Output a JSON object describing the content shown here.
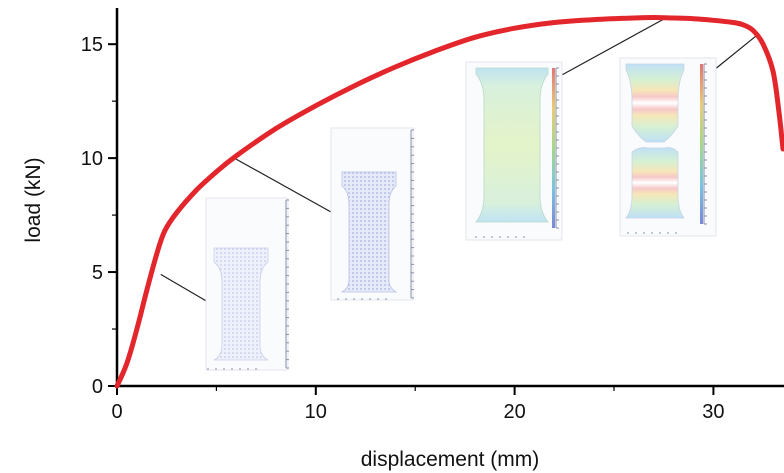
{
  "chart_data": {
    "type": "line",
    "title": "",
    "xlabel": "displacement (mm)",
    "ylabel": "load (kN)",
    "xlim": [
      0,
      33.5
    ],
    "ylim": [
      0,
      16.5
    ],
    "xticks": [
      0,
      10,
      20,
      30
    ],
    "yticks": [
      0,
      5,
      10,
      15
    ],
    "grid": false,
    "legend": "none",
    "series": [
      {
        "color": "#e3262b",
        "x": [
          0,
          0.5,
          1,
          1.5,
          2,
          2.4,
          3,
          4,
          5,
          6,
          8,
          10,
          12,
          14,
          16,
          18,
          20,
          22,
          24,
          26,
          27,
          28,
          29,
          30,
          31,
          31.5,
          32,
          32.5,
          33,
          33.3,
          33.5
        ],
        "y": [
          0,
          1.0,
          2.5,
          4.2,
          5.8,
          6.8,
          7.6,
          8.6,
          9.4,
          10.1,
          11.3,
          12.3,
          13.2,
          14.0,
          14.7,
          15.3,
          15.7,
          15.95,
          16.08,
          16.15,
          16.17,
          16.15,
          16.12,
          16.05,
          15.95,
          15.85,
          15.6,
          15.0,
          13.8,
          12.0,
          10.4
        ]
      }
    ],
    "insets": [
      {
        "name": "specimen-1",
        "x": 2.2,
        "y": 4.9,
        "colormap": "blue",
        "deformation": "none"
      },
      {
        "name": "specimen-2",
        "x": 5.9,
        "y": 10.0,
        "colormap": "blue",
        "deformation": "uniform"
      },
      {
        "name": "specimen-3",
        "x": 27.5,
        "y": 16.1,
        "colormap": "green-yellow",
        "deformation": "necking-onset"
      },
      {
        "name": "specimen-4",
        "x": 32.2,
        "y": 15.4,
        "colormap": "rainbow",
        "deformation": "fracture"
      }
    ]
  }
}
